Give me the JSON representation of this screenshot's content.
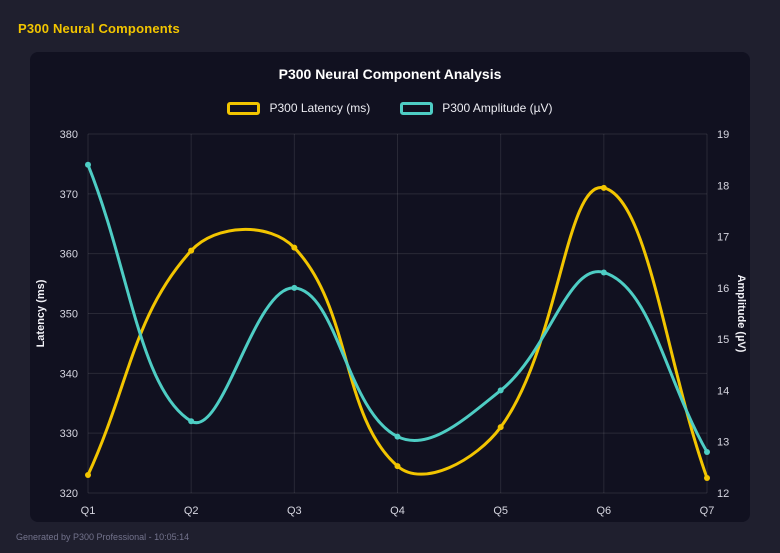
{
  "page": {
    "header": "P300 Neural Components",
    "footer": "Generated by P300 Professional - 10:05:14"
  },
  "chart_data": {
    "type": "line",
    "title": "P300 Neural Component Analysis",
    "categories": [
      "Q1",
      "Q2",
      "Q3",
      "Q4",
      "Q5",
      "Q6",
      "Q7"
    ],
    "series": [
      {
        "name": "P300 Latency (ms)",
        "axis": "left",
        "color": "#f2c500",
        "values": [
          323,
          360.5,
          361,
          324.5,
          331,
          371,
          322.5
        ]
      },
      {
        "name": "P300 Amplitude (µV)",
        "axis": "right",
        "color": "#4ecdc4",
        "values": [
          18.4,
          13.4,
          16,
          13.1,
          14,
          16.3,
          12.8
        ]
      }
    ],
    "left_axis": {
      "label": "Latency (ms)",
      "min": 320,
      "max": 380,
      "step": 10
    },
    "right_axis": {
      "label": "Amplitude (µV)",
      "min": 12,
      "max": 19,
      "step": 1
    },
    "grid": true,
    "legend_position": "top",
    "line_tension": 0.4
  },
  "colors": {
    "page_background": "#1f1f2e",
    "card_background": "#111120",
    "accent_yellow": "#f2c500",
    "accent_teal": "#4ecdc4",
    "grid": "rgba(255,255,255,0.10)",
    "tick_text": "#d6d6e0",
    "axis_title_text": "#f0f0f5",
    "title_text": "#ffffff",
    "footer_text": "#73738c"
  }
}
